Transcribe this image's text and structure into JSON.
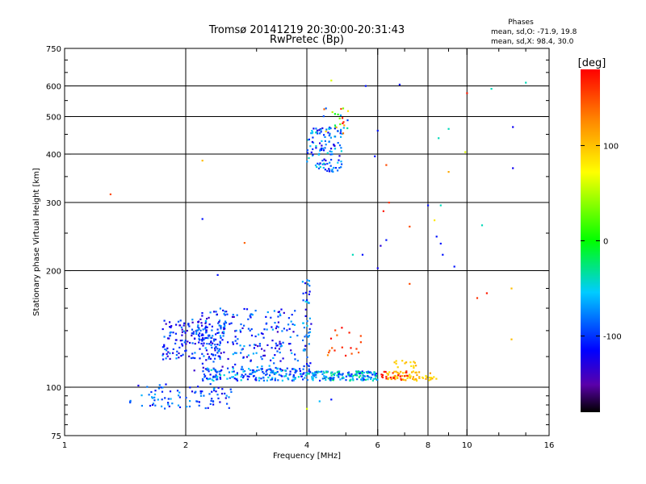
{
  "chart_data": {
    "type": "scatter",
    "title": "Tromsø 20141219 20:30:00-20:31:43",
    "subtitle": "RwPretec (Bp)",
    "xlabel": "Frequency [MHz]",
    "ylabel": "Stationary phase Virtual Height [km]",
    "xscale": "log",
    "yscale": "log",
    "xlim": [
      1,
      16
    ],
    "ylim": [
      75,
      750
    ],
    "x_ticks": [
      1,
      2,
      4,
      6,
      8,
      10,
      16
    ],
    "x_tick_labels": [
      "1",
      "2",
      "4",
      "6",
      "8",
      "10",
      "16"
    ],
    "y_ticks": [
      75,
      100,
      200,
      300,
      400,
      500,
      600,
      750
    ],
    "y_tick_labels": [
      "75",
      "100",
      "200",
      "300",
      "400",
      "500",
      "600",
      "750"
    ],
    "grid": true,
    "phase_stats": {
      "heading": "Phases",
      "line_o": "mean, sd,O: -71.9, 19.8",
      "line_x": "mean, sd,X: 98.4, 30.0"
    },
    "colorbar": {
      "label": "[deg]",
      "min": -180,
      "max": 180,
      "ticks": [
        100,
        0,
        -100
      ],
      "tick_labels": [
        "100",
        "0",
        "-100"
      ]
    },
    "clusters": [
      {
        "f": [
          1.45,
          2.6
        ],
        "h": [
          88,
          102
        ],
        "phase": [
          -130,
          -60
        ],
        "n": 90
      },
      {
        "f": [
          1.75,
          2.5
        ],
        "h": [
          118,
          150
        ],
        "phase": [
          -140,
          -70
        ],
        "n": 170
      },
      {
        "f": [
          2.1,
          3.8
        ],
        "h": [
          110,
          160
        ],
        "phase": [
          -140,
          -60
        ],
        "n": 230
      },
      {
        "f": [
          2.2,
          4.0
        ],
        "h": [
          104,
          112
        ],
        "phase": [
          -120,
          -40
        ],
        "n": 170
      },
      {
        "f": [
          3.9,
          4.1
        ],
        "h": [
          108,
          190
        ],
        "phase": [
          -130,
          -50
        ],
        "n": 50
      },
      {
        "f": [
          4.0,
          6.0
        ],
        "h": [
          104,
          110
        ],
        "phase": [
          -110,
          -20
        ],
        "n": 160
      },
      {
        "f": [
          4.0,
          4.9
        ],
        "h": [
          360,
          470
        ],
        "phase": [
          -130,
          -40
        ],
        "n": 120
      },
      {
        "f": [
          4.4,
          5.1
        ],
        "h": [
          450,
          530
        ],
        "phase": [
          -100,
          180
        ],
        "n": 25
      },
      {
        "f": [
          6.3,
          8.4
        ],
        "h": [
          104,
          110
        ],
        "phase": [
          80,
          120
        ],
        "n": 65
      },
      {
        "f": [
          6.1,
          7.2
        ],
        "h": [
          104,
          110
        ],
        "phase": [
          150,
          180
        ],
        "n": 20
      },
      {
        "f": [
          6.6,
          7.5
        ],
        "h": [
          112,
          118
        ],
        "phase": [
          80,
          110
        ],
        "n": 14
      },
      {
        "f": [
          4.4,
          5.5
        ],
        "h": [
          120,
          145
        ],
        "phase": [
          120,
          180
        ],
        "n": 18
      }
    ],
    "points": [
      {
        "x": 1.3,
        "y": 315,
        "phase": 150
      },
      {
        "x": 2.2,
        "y": 385,
        "phase": 100
      },
      {
        "x": 2.2,
        "y": 272,
        "phase": -110
      },
      {
        "x": 2.8,
        "y": 236,
        "phase": 140
      },
      {
        "x": 4.6,
        "y": 620,
        "phase": 60
      },
      {
        "x": 5.6,
        "y": 600,
        "phase": -110
      },
      {
        "x": 6.8,
        "y": 605,
        "phase": -110
      },
      {
        "x": 10.0,
        "y": 575,
        "phase": 170
      },
      {
        "x": 11.5,
        "y": 590,
        "phase": -40
      },
      {
        "x": 14.0,
        "y": 612,
        "phase": -40
      },
      {
        "x": 13.0,
        "y": 470,
        "phase": -120
      },
      {
        "x": 13.0,
        "y": 368,
        "phase": -120
      },
      {
        "x": 9.0,
        "y": 465,
        "phase": -40
      },
      {
        "x": 8.5,
        "y": 440,
        "phase": -40
      },
      {
        "x": 9.9,
        "y": 405,
        "phase": 60
      },
      {
        "x": 9.0,
        "y": 360,
        "phase": 110
      },
      {
        "x": 6.0,
        "y": 460,
        "phase": -110
      },
      {
        "x": 5.9,
        "y": 395,
        "phase": -110
      },
      {
        "x": 6.3,
        "y": 375,
        "phase": 150
      },
      {
        "x": 6.4,
        "y": 300,
        "phase": 160
      },
      {
        "x": 6.2,
        "y": 285,
        "phase": 170
      },
      {
        "x": 6.1,
        "y": 232,
        "phase": -130
      },
      {
        "x": 6.0,
        "y": 203,
        "phase": -120
      },
      {
        "x": 6.3,
        "y": 240,
        "phase": -110
      },
      {
        "x": 7.2,
        "y": 260,
        "phase": 150
      },
      {
        "x": 8.0,
        "y": 295,
        "phase": -110
      },
      {
        "x": 8.3,
        "y": 270,
        "phase": 80
      },
      {
        "x": 8.4,
        "y": 245,
        "phase": -110
      },
      {
        "x": 8.6,
        "y": 235,
        "phase": -110
      },
      {
        "x": 8.7,
        "y": 220,
        "phase": -110
      },
      {
        "x": 9.3,
        "y": 205,
        "phase": -110
      },
      {
        "x": 8.6,
        "y": 295,
        "phase": -40
      },
      {
        "x": 10.9,
        "y": 262,
        "phase": -40
      },
      {
        "x": 5.2,
        "y": 220,
        "phase": -40
      },
      {
        "x": 5.5,
        "y": 220,
        "phase": -110
      },
      {
        "x": 7.2,
        "y": 185,
        "phase": 150
      },
      {
        "x": 10.6,
        "y": 170,
        "phase": 160
      },
      {
        "x": 11.2,
        "y": 175,
        "phase": 170
      },
      {
        "x": 12.9,
        "y": 180,
        "phase": 100
      },
      {
        "x": 12.9,
        "y": 133,
        "phase": 100
      },
      {
        "x": 4.3,
        "y": 92,
        "phase": -60
      },
      {
        "x": 4.6,
        "y": 93,
        "phase": -110
      },
      {
        "x": 4.0,
        "y": 88,
        "phase": 60
      },
      {
        "x": 2.4,
        "y": 195,
        "phase": -110
      },
      {
        "x": 4.0,
        "y": 168,
        "phase": -110
      }
    ]
  }
}
